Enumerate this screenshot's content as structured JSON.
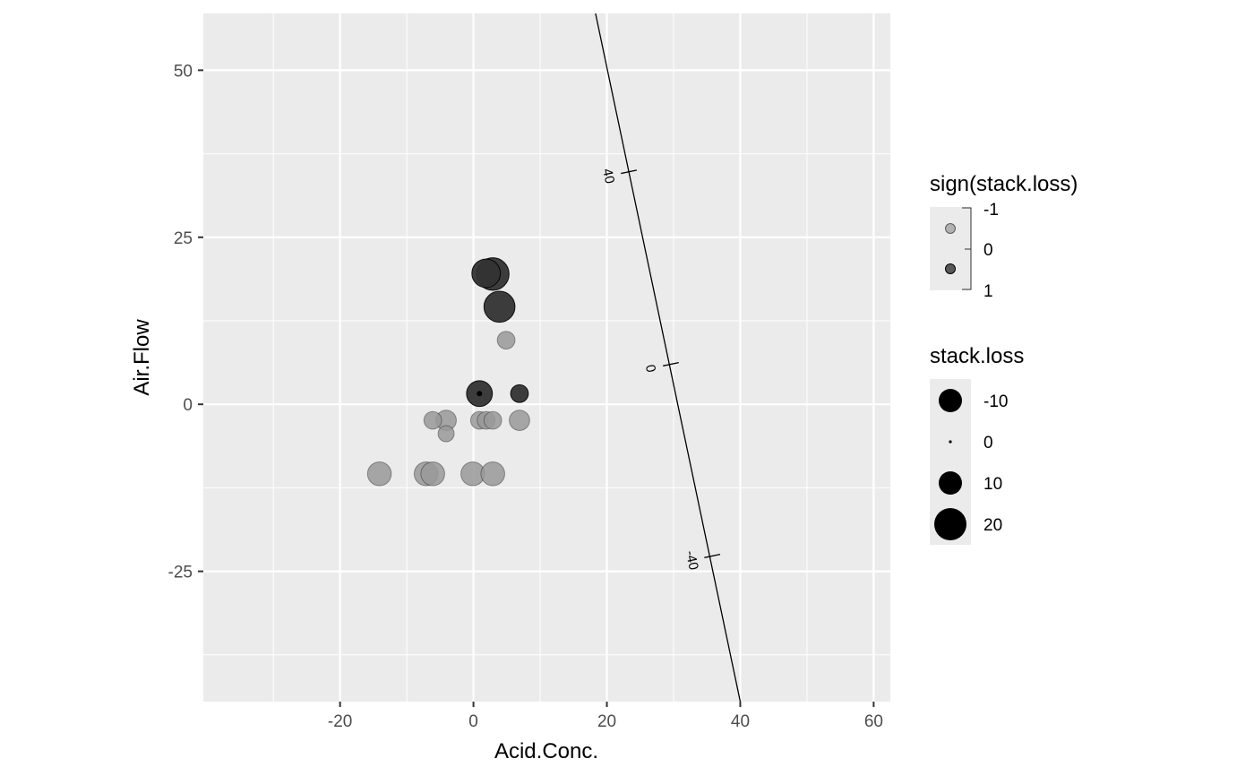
{
  "chart_data": {
    "type": "scatter",
    "xlabel": "Acid.Conc.",
    "ylabel": "Air.Flow",
    "xlim": [
      -40.5,
      62.5
    ],
    "ylim": [
      -44.5,
      58.5
    ],
    "x_ticks": [
      -20,
      0,
      20,
      40,
      60
    ],
    "y_ticks": [
      -25,
      0,
      25,
      50
    ],
    "x_tick_labels": [
      "-20",
      "0",
      "20",
      "40",
      "60"
    ],
    "y_tick_labels": [
      "-25",
      "0",
      "25",
      "50"
    ],
    "grid": true,
    "points": [
      {
        "x": 2.9,
        "y": 19.5,
        "size": 20,
        "sign": 1
      },
      {
        "x": 1.9,
        "y": 19.6,
        "size": 15,
        "sign": 1
      },
      {
        "x": 3.9,
        "y": 14.6,
        "size": 18,
        "sign": 1
      },
      {
        "x": 4.9,
        "y": 9.6,
        "size": -5,
        "sign": -1
      },
      {
        "x": 0.9,
        "y": 1.6,
        "size": 12,
        "sign": 1
      },
      {
        "x": 6.9,
        "y": 1.6,
        "size": 5,
        "sign": 1
      },
      {
        "x": -6.1,
        "y": -2.4,
        "size": -5,
        "sign": -1
      },
      {
        "x": -4.1,
        "y": -2.4,
        "size": -7,
        "sign": -1
      },
      {
        "x": 0.9,
        "y": -2.4,
        "size": -5,
        "sign": -1
      },
      {
        "x": 1.9,
        "y": -2.4,
        "size": -5,
        "sign": -1
      },
      {
        "x": 2.9,
        "y": -2.4,
        "size": -5,
        "sign": -1
      },
      {
        "x": 6.9,
        "y": -2.4,
        "size": -7,
        "sign": -1
      },
      {
        "x": -4.1,
        "y": -4.4,
        "size": -4,
        "sign": -1
      },
      {
        "x": -14.1,
        "y": -10.4,
        "size": -10,
        "sign": -1
      },
      {
        "x": -7.1,
        "y": -10.4,
        "size": -10,
        "sign": -1
      },
      {
        "x": -6.1,
        "y": -10.4,
        "size": -10,
        "sign": -1
      },
      {
        "x": -0.1,
        "y": -10.4,
        "size": -10,
        "sign": -1
      },
      {
        "x": 2.9,
        "y": -10.4,
        "size": -10,
        "sign": -1
      }
    ],
    "projection_axis": {
      "from": [
        18.3,
        58.5
      ],
      "to": [
        40.0,
        -44.5
      ],
      "ticks": [
        {
          "value": 40,
          "at": [
            23.3,
            34.8
          ],
          "label": "40"
        },
        {
          "value": 0,
          "at": [
            29.6,
            6.0
          ],
          "label": "0"
        },
        {
          "value": -40,
          "at": [
            35.8,
            -22.7
          ],
          "label": "-40"
        }
      ]
    },
    "legends": [
      {
        "title": "sign(stack.loss)",
        "keys": [
          {
            "label": "-1",
            "tone": "#999999"
          },
          {
            "label": "0"
          },
          {
            "label": "1",
            "tone": "#333333"
          }
        ]
      },
      {
        "title": "stack.loss",
        "keys": [
          {
            "label": "-10",
            "value": -10
          },
          {
            "label": "0",
            "value": 0
          },
          {
            "label": "10",
            "value": 10
          },
          {
            "label": "20",
            "value": 20
          }
        ]
      }
    ],
    "colors": {
      "panel": "#ebebeb",
      "grid_major": "#ffffff",
      "point_neg": "#999999",
      "point_pos": "#333333",
      "axis_line": "#000000"
    }
  }
}
